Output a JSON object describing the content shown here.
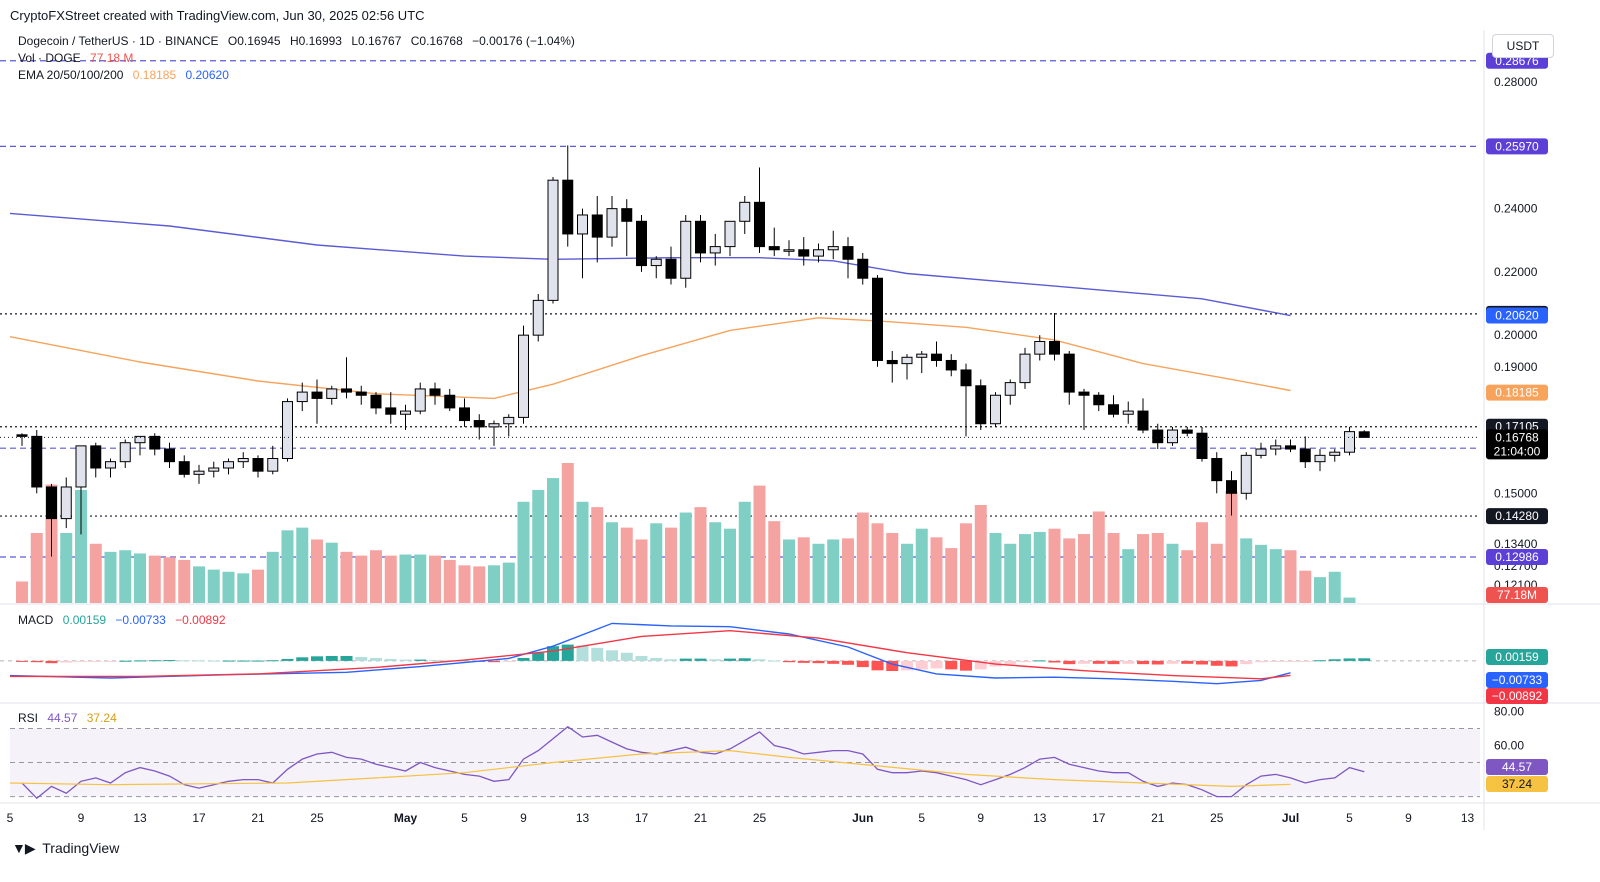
{
  "header": {
    "attribution": "CryptoFXStreet created with TradingView.com, Jun 30, 2025 02:56 UTC"
  },
  "legend": {
    "symbol": "Dogecoin / TetherUS · 1D · BINANCE",
    "open": "O0.16945",
    "high": "H0.16993",
    "low": "L0.16767",
    "close": "C0.16768",
    "change": "−0.00176 (−1.04%)",
    "vol_label": "Vol · DOGE",
    "vol_value": "77.18 M",
    "ema_label": "EMA 20/50/100/200",
    "ema_a": "0.18185",
    "ema_b": "0.20620",
    "macd_label": "MACD",
    "macd_hist": "0.00159",
    "macd_line": "−0.00733",
    "macd_signal": "−0.00892",
    "rsi_label": "RSI",
    "rsi_value": "44.57",
    "rsi_ma": "37.24"
  },
  "currency_button": "USDT",
  "footer": {
    "brand": "TradingView"
  },
  "colors": {
    "up": "#26a69a",
    "down": "#ef5350",
    "candle_up_fill": "#e0e3eb",
    "candle_down_fill": "#000000",
    "ema200": "#5b5bd6",
    "ema50": "#f7a35c",
    "macd": "#2962ff",
    "signal": "#f23645",
    "rsi": "#7e57c2",
    "rsi_ma": "#f5c242"
  },
  "chart_data": {
    "type": "candlestick",
    "price_axis": {
      "range": [
        0.115,
        0.287
      ],
      "ticks": [
        "0.28000",
        "0.24000",
        "0.22000",
        "0.20000",
        "0.19000",
        "0.15000",
        "0.13400",
        "0.12700",
        "0.12100"
      ],
      "tick_values": [
        0.28,
        0.24,
        0.22,
        0.2,
        0.19,
        0.15,
        0.134,
        0.127,
        0.121
      ]
    },
    "x_axis": {
      "labels": [
        "5",
        "9",
        "13",
        "17",
        "21",
        "25",
        "May",
        "5",
        "9",
        "13",
        "17",
        "21",
        "25",
        "Jun",
        "5",
        "9",
        "13",
        "17",
        "21",
        "25",
        "Jul",
        "5",
        "9",
        "13"
      ],
      "label_days": [
        0,
        4,
        8,
        12,
        16,
        20,
        26,
        30,
        34,
        38,
        42,
        46,
        50,
        57,
        61,
        65,
        69,
        73,
        77,
        81,
        86,
        90,
        94,
        98
      ]
    },
    "levels": [
      {
        "label": "0.28676",
        "value": 0.28676,
        "style": "dashed",
        "color": "#5b5bd6"
      },
      {
        "label": "0.25970",
        "value": 0.2597,
        "style": "dashed",
        "color": "#5b5bd6"
      },
      {
        "label": "0.20672",
        "value": 0.20672,
        "style": "dotted",
        "color": "#131722"
      },
      {
        "label": "0.17105",
        "value": 0.17105,
        "style": "dotted",
        "color": "#131722"
      },
      {
        "label": "0.16426",
        "value": 0.16426,
        "style": "dashed",
        "color": "#5b5bd6"
      },
      {
        "label": "0.14280",
        "value": 0.1428,
        "style": "dotted",
        "color": "#131722"
      },
      {
        "label": "0.12986",
        "value": 0.12986,
        "style": "dashed",
        "color": "#5b5bd6"
      }
    ],
    "right_badges": [
      {
        "label": "0.20620",
        "value": 0.2062,
        "color": "#2962ff"
      },
      {
        "label": "0.18185",
        "value": 0.18185,
        "color": "#f7a35c"
      },
      {
        "label": "0.16768",
        "value": 0.16768,
        "color": "#000000"
      }
    ],
    "countdown": "21:04:00",
    "candles_ohlc": [
      [
        0.1685,
        0.169,
        0.165,
        0.168
      ],
      [
        0.168,
        0.17,
        0.15,
        0.152
      ],
      [
        0.152,
        0.153,
        0.13,
        0.142
      ],
      [
        0.142,
        0.155,
        0.139,
        0.152
      ],
      [
        0.152,
        0.162,
        0.137,
        0.165
      ],
      [
        0.165,
        0.166,
        0.155,
        0.158
      ],
      [
        0.158,
        0.161,
        0.155,
        0.16
      ],
      [
        0.16,
        0.167,
        0.158,
        0.166
      ],
      [
        0.166,
        0.168,
        0.162,
        0.168
      ],
      [
        0.168,
        0.169,
        0.162,
        0.164
      ],
      [
        0.164,
        0.166,
        0.158,
        0.16
      ],
      [
        0.16,
        0.162,
        0.155,
        0.156
      ],
      [
        0.156,
        0.159,
        0.153,
        0.157
      ],
      [
        0.157,
        0.16,
        0.155,
        0.158
      ],
      [
        0.158,
        0.161,
        0.156,
        0.16
      ],
      [
        0.16,
        0.163,
        0.158,
        0.161
      ],
      [
        0.161,
        0.162,
        0.155,
        0.157
      ],
      [
        0.157,
        0.165,
        0.156,
        0.161
      ],
      [
        0.161,
        0.18,
        0.16,
        0.179
      ],
      [
        0.179,
        0.185,
        0.176,
        0.182
      ],
      [
        0.182,
        0.186,
        0.172,
        0.18
      ],
      [
        0.18,
        0.184,
        0.178,
        0.183
      ],
      [
        0.183,
        0.193,
        0.18,
        0.182
      ],
      [
        0.182,
        0.184,
        0.178,
        0.181
      ],
      [
        0.181,
        0.182,
        0.175,
        0.177
      ],
      [
        0.177,
        0.182,
        0.172,
        0.175
      ],
      [
        0.175,
        0.178,
        0.17,
        0.176
      ],
      [
        0.176,
        0.185,
        0.175,
        0.183
      ],
      [
        0.183,
        0.185,
        0.178,
        0.181
      ],
      [
        0.181,
        0.183,
        0.176,
        0.177
      ],
      [
        0.177,
        0.18,
        0.171,
        0.173
      ],
      [
        0.173,
        0.175,
        0.167,
        0.171
      ],
      [
        0.171,
        0.173,
        0.165,
        0.172
      ],
      [
        0.172,
        0.175,
        0.168,
        0.174
      ],
      [
        0.174,
        0.203,
        0.172,
        0.2
      ],
      [
        0.2,
        0.213,
        0.198,
        0.211
      ],
      [
        0.211,
        0.25,
        0.21,
        0.249
      ],
      [
        0.249,
        0.26,
        0.228,
        0.232
      ],
      [
        0.232,
        0.24,
        0.218,
        0.238
      ],
      [
        0.238,
        0.244,
        0.223,
        0.231
      ],
      [
        0.231,
        0.244,
        0.228,
        0.24
      ],
      [
        0.24,
        0.243,
        0.225,
        0.236
      ],
      [
        0.236,
        0.238,
        0.22,
        0.222
      ],
      [
        0.222,
        0.225,
        0.218,
        0.224
      ],
      [
        0.224,
        0.228,
        0.216,
        0.218
      ],
      [
        0.218,
        0.238,
        0.215,
        0.236
      ],
      [
        0.236,
        0.238,
        0.223,
        0.226
      ],
      [
        0.226,
        0.232,
        0.222,
        0.228
      ],
      [
        0.228,
        0.234,
        0.225,
        0.236
      ],
      [
        0.236,
        0.244,
        0.232,
        0.242
      ],
      [
        0.242,
        0.253,
        0.226,
        0.228
      ],
      [
        0.228,
        0.234,
        0.225,
        0.227
      ],
      [
        0.227,
        0.23,
        0.225,
        0.227
      ],
      [
        0.227,
        0.231,
        0.222,
        0.225
      ],
      [
        0.225,
        0.229,
        0.223,
        0.227
      ],
      [
        0.227,
        0.233,
        0.224,
        0.228
      ],
      [
        0.228,
        0.231,
        0.218,
        0.224
      ],
      [
        0.224,
        0.226,
        0.216,
        0.218
      ],
      [
        0.218,
        0.219,
        0.19,
        0.192
      ],
      [
        0.192,
        0.195,
        0.185,
        0.191
      ],
      [
        0.191,
        0.194,
        0.186,
        0.193
      ],
      [
        0.193,
        0.195,
        0.188,
        0.194
      ],
      [
        0.194,
        0.198,
        0.19,
        0.192
      ],
      [
        0.192,
        0.194,
        0.187,
        0.189
      ],
      [
        0.189,
        0.191,
        0.168,
        0.184
      ],
      [
        0.184,
        0.186,
        0.17,
        0.172
      ],
      [
        0.172,
        0.182,
        0.171,
        0.181
      ],
      [
        0.181,
        0.186,
        0.178,
        0.185
      ],
      [
        0.185,
        0.196,
        0.183,
        0.194
      ],
      [
        0.194,
        0.2,
        0.192,
        0.198
      ],
      [
        0.198,
        0.207,
        0.192,
        0.194
      ],
      [
        0.194,
        0.195,
        0.178,
        0.182
      ],
      [
        0.182,
        0.183,
        0.17,
        0.181
      ],
      [
        0.181,
        0.182,
        0.176,
        0.178
      ],
      [
        0.178,
        0.181,
        0.174,
        0.175
      ],
      [
        0.175,
        0.179,
        0.172,
        0.176
      ],
      [
        0.176,
        0.18,
        0.169,
        0.17
      ],
      [
        0.17,
        0.172,
        0.164,
        0.166
      ],
      [
        0.166,
        0.171,
        0.165,
        0.17
      ],
      [
        0.17,
        0.171,
        0.168,
        0.169
      ],
      [
        0.169,
        0.171,
        0.16,
        0.161
      ],
      [
        0.161,
        0.163,
        0.15,
        0.154
      ],
      [
        0.154,
        0.157,
        0.143,
        0.15
      ],
      [
        0.15,
        0.163,
        0.148,
        0.162
      ],
      [
        0.162,
        0.166,
        0.161,
        0.164
      ],
      [
        0.164,
        0.167,
        0.162,
        0.165
      ],
      [
        0.165,
        0.167,
        0.163,
        0.164
      ],
      [
        0.164,
        0.168,
        0.158,
        0.16
      ],
      [
        0.16,
        0.164,
        0.157,
        0.162
      ],
      [
        0.162,
        0.164,
        0.16,
        0.163
      ],
      [
        0.163,
        0.171,
        0.162,
        0.1695
      ],
      [
        0.16945,
        0.16993,
        0.16767,
        0.16768
      ]
    ],
    "volume": {
      "badge": "77.18M",
      "values": [
        40,
        130,
        220,
        130,
        210,
        110,
        95,
        98,
        92,
        88,
        85,
        80,
        68,
        62,
        58,
        55,
        62,
        95,
        135,
        140,
        118,
        112,
        95,
        88,
        98,
        88,
        90,
        90,
        88,
        80,
        70,
        68,
        70,
        75,
        188,
        210,
        232,
        260,
        188,
        178,
        150,
        140,
        118,
        148,
        140,
        168,
        178,
        150,
        138,
        188,
        218,
        152,
        118,
        122,
        110,
        118,
        120,
        168,
        148,
        130,
        110,
        138,
        122,
        102,
        148,
        182,
        130,
        110,
        128,
        132,
        138,
        120,
        128,
        170,
        130,
        100,
        128,
        130,
        110,
        98,
        150,
        110,
        208,
        120,
        108,
        100,
        98,
        60,
        48,
        58,
        10
      ]
    },
    "ema200": [
      [
        0,
        0.2385
      ],
      [
        10,
        0.2345
      ],
      [
        20,
        0.2285
      ],
      [
        30,
        0.225
      ],
      [
        36,
        0.224
      ],
      [
        44,
        0.2245
      ],
      [
        50,
        0.2245
      ],
      [
        55,
        0.2235
      ],
      [
        60,
        0.2195
      ],
      [
        70,
        0.2155
      ],
      [
        80,
        0.2115
      ],
      [
        86,
        0.2062
      ]
    ],
    "ema50": [
      [
        0,
        0.1995
      ],
      [
        8,
        0.1915
      ],
      [
        16,
        0.1855
      ],
      [
        24,
        0.1815
      ],
      [
        32,
        0.18
      ],
      [
        36,
        0.1845
      ],
      [
        42,
        0.1935
      ],
      [
        48,
        0.2015
      ],
      [
        54,
        0.2055
      ],
      [
        58,
        0.2045
      ],
      [
        64,
        0.2025
      ],
      [
        70,
        0.1985
      ],
      [
        76,
        0.191
      ],
      [
        82,
        0.186
      ],
      [
        86,
        0.1825
      ]
    ],
    "macd": {
      "label": "0.00159",
      "line_label": "−0.00733",
      "signal_label": "−0.00892",
      "range": [
        -0.024,
        0.03
      ],
      "hist": [
        -0.0003,
        -0.0008,
        -0.0014,
        -0.001,
        -0.0006,
        -0.0004,
        -0.0002,
        0.0001,
        0.0003,
        0.0004,
        0.0005,
        0.0004,
        0.0003,
        0.0002,
        0.0002,
        0.0002,
        0.0002,
        0.0004,
        0.0012,
        0.0022,
        0.0028,
        0.003,
        0.003,
        0.0024,
        0.0018,
        0.0012,
        0.0008,
        0.0008,
        0.0006,
        0.0003,
        0.0001,
        -0.0004,
        -0.0008,
        -0.0006,
        0.0018,
        0.005,
        0.009,
        0.01,
        0.0095,
        0.008,
        0.0065,
        0.005,
        0.003,
        0.0018,
        0.001,
        0.0014,
        0.0014,
        0.001,
        0.0014,
        0.0016,
        0.001,
        0.0002,
        -0.0008,
        -0.0012,
        -0.0014,
        -0.0018,
        -0.0024,
        -0.0038,
        -0.0058,
        -0.0062,
        -0.0058,
        -0.0052,
        -0.0046,
        -0.0052,
        -0.006,
        -0.0052,
        -0.0034,
        -0.0022,
        -0.0008,
        0.0003,
        -0.001,
        -0.002,
        -0.0018,
        -0.0018,
        -0.002,
        -0.0018,
        -0.002,
        -0.0022,
        -0.0018,
        -0.0018,
        -0.0022,
        -0.003,
        -0.0034,
        -0.002,
        -0.0008,
        -0.0005,
        -0.0004,
        -0.0003,
        0.0004,
        0.001,
        0.0015,
        0.00159
      ],
      "line": [
        [
          0,
          -0.009
        ],
        [
          6,
          -0.0105
        ],
        [
          14,
          -0.0085
        ],
        [
          22,
          -0.007
        ],
        [
          27,
          -0.0035
        ],
        [
          33,
          0.0015
        ],
        [
          36,
          0.009
        ],
        [
          40,
          0.023
        ],
        [
          44,
          0.0215
        ],
        [
          48,
          0.021
        ],
        [
          52,
          0.0165
        ],
        [
          56,
          0.0085
        ],
        [
          59,
          -0.002
        ],
        [
          62,
          -0.008
        ],
        [
          66,
          -0.0105
        ],
        [
          70,
          -0.01
        ],
        [
          74,
          -0.011
        ],
        [
          78,
          -0.0125
        ],
        [
          81,
          -0.014
        ],
        [
          84,
          -0.012
        ],
        [
          86,
          -0.0073
        ]
      ],
      "signal": [
        [
          0,
          -0.0095
        ],
        [
          8,
          -0.0095
        ],
        [
          16,
          -0.008
        ],
        [
          24,
          -0.004
        ],
        [
          30,
          0.0005
        ],
        [
          36,
          0.006
        ],
        [
          42,
          0.015
        ],
        [
          48,
          0.0185
        ],
        [
          54,
          0.014
        ],
        [
          60,
          0.005
        ],
        [
          66,
          -0.002
        ],
        [
          72,
          -0.006
        ],
        [
          78,
          -0.009
        ],
        [
          84,
          -0.011
        ],
        [
          86,
          -0.0089
        ]
      ]
    },
    "rsi": {
      "label": "44.57",
      "ma_label": "37.24",
      "ticks": [
        "80.00",
        "60.00"
      ],
      "tick_values": [
        80,
        60
      ],
      "band": [
        30,
        70
      ],
      "range": [
        28,
        82
      ],
      "values": [
        38,
        29,
        36,
        32,
        39,
        41,
        38,
        44,
        47,
        45,
        42,
        37,
        35,
        37,
        39,
        40,
        40,
        38,
        46,
        52,
        55,
        56,
        53,
        52,
        49,
        47,
        45,
        50,
        47,
        45,
        43,
        42,
        39,
        40,
        52,
        57,
        64,
        71,
        65,
        66,
        62,
        58,
        56,
        55,
        57,
        59,
        56,
        55,
        58,
        63,
        68,
        60,
        58,
        55,
        56,
        57,
        57,
        55,
        46,
        44,
        44,
        45,
        44,
        42,
        40,
        37,
        40,
        43,
        47,
        52,
        53,
        49,
        47,
        45,
        44,
        44,
        39,
        36,
        38,
        37,
        34,
        30,
        30,
        37,
        42,
        43,
        41,
        38,
        40,
        41,
        47,
        44.57
      ],
      "ma": [
        [
          0,
          38
        ],
        [
          6,
          37
        ],
        [
          12,
          37.5
        ],
        [
          18,
          38
        ],
        [
          24,
          41
        ],
        [
          30,
          44
        ],
        [
          36,
          50
        ],
        [
          42,
          55
        ],
        [
          48,
          57
        ],
        [
          52,
          53
        ],
        [
          58,
          48
        ],
        [
          64,
          43
        ],
        [
          70,
          40
        ],
        [
          76,
          38
        ],
        [
          82,
          36
        ],
        [
          86,
          37.24
        ]
      ]
    }
  }
}
